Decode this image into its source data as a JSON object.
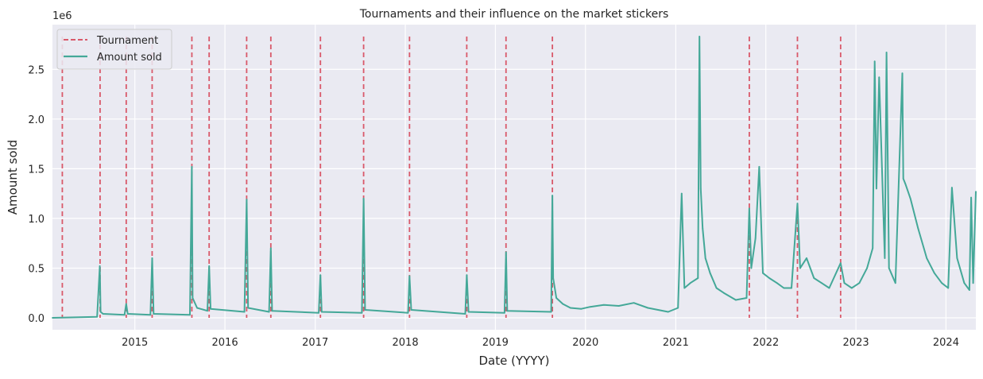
{
  "chart_data": {
    "type": "line",
    "title": "Tournaments and their influence on the market stickers",
    "xlabel": "Date (YYYY)",
    "ylabel": "Amount sold",
    "y_offset_label": "1e6",
    "xlim": [
      "2014-02-01",
      "2024-05-01"
    ],
    "ylim": [
      -0.12,
      2.95
    ],
    "x_ticks": [
      {
        "date": "2015-01-01",
        "label": "2015"
      },
      {
        "date": "2016-01-01",
        "label": "2016"
      },
      {
        "date": "2017-01-01",
        "label": "2017"
      },
      {
        "date": "2018-01-01",
        "label": "2018"
      },
      {
        "date": "2019-01-01",
        "label": "2019"
      },
      {
        "date": "2020-01-01",
        "label": "2020"
      },
      {
        "date": "2021-01-01",
        "label": "2021"
      },
      {
        "date": "2022-01-01",
        "label": "2022"
      },
      {
        "date": "2023-01-01",
        "label": "2023"
      },
      {
        "date": "2024-01-01",
        "label": "2024"
      }
    ],
    "y_ticks": [
      {
        "value": 0.0,
        "label": "0.0"
      },
      {
        "value": 0.5,
        "label": "0.5"
      },
      {
        "value": 1.0,
        "label": "1.0"
      },
      {
        "value": 1.5,
        "label": "1.5"
      },
      {
        "value": 2.0,
        "label": "2.0"
      },
      {
        "value": 2.5,
        "label": "2.5"
      }
    ],
    "grid": true,
    "legend_placement": "top-left",
    "background_color": "#eaeaf2",
    "series": [
      {
        "name": "Tournament",
        "style": "dashed-vertical",
        "color": "#d9596a",
        "dates": [
          "2014-03-13",
          "2014-08-13",
          "2014-11-27",
          "2015-03-12",
          "2015-08-20",
          "2015-10-29",
          "2016-03-29",
          "2016-07-05",
          "2017-01-22",
          "2017-07-16",
          "2018-01-18",
          "2018-09-07",
          "2019-02-13",
          "2019-08-20",
          "2021-10-26",
          "2022-05-09",
          "2022-10-31"
        ],
        "y_top": 2.83
      },
      {
        "name": "Amount sold",
        "style": "solid",
        "color": "#44a898",
        "x": [
          "2014-02-01",
          "2014-08-01",
          "2014-08-12",
          "2014-08-15",
          "2014-08-25",
          "2014-11-20",
          "2014-11-27",
          "2014-12-03",
          "2015-03-05",
          "2015-03-12",
          "2015-03-18",
          "2015-08-12",
          "2015-08-20",
          "2015-08-23",
          "2015-09-10",
          "2015-10-22",
          "2015-10-29",
          "2015-11-04",
          "2016-03-20",
          "2016-03-29",
          "2016-04-04",
          "2016-06-28",
          "2016-07-05",
          "2016-07-10",
          "2017-01-15",
          "2017-01-22",
          "2017-01-27",
          "2017-07-09",
          "2017-07-16",
          "2017-07-22",
          "2018-01-12",
          "2018-01-18",
          "2018-01-25",
          "2018-09-01",
          "2018-09-07",
          "2018-09-14",
          "2019-02-07",
          "2019-02-13",
          "2019-02-18",
          "2019-08-15",
          "2019-08-20",
          "2019-08-23",
          "2019-09-05",
          "2019-10-01",
          "2019-11-01",
          "2019-12-15",
          "2020-01-20",
          "2020-03-15",
          "2020-05-15",
          "2020-07-15",
          "2020-09-10",
          "2020-12-01",
          "2021-01-10",
          "2021-01-25",
          "2021-02-05",
          "2021-03-01",
          "2021-04-01",
          "2021-04-07",
          "2021-04-12",
          "2021-04-20",
          "2021-05-01",
          "2021-05-20",
          "2021-06-15",
          "2021-07-15",
          "2021-09-01",
          "2021-10-15",
          "2021-10-26",
          "2021-11-03",
          "2021-11-20",
          "2021-12-05",
          "2021-12-20",
          "2022-01-15",
          "2022-02-15",
          "2022-03-15",
          "2022-04-15",
          "2022-05-09",
          "2022-05-20",
          "2022-06-15",
          "2022-07-15",
          "2022-08-15",
          "2022-09-15",
          "2022-10-31",
          "2022-11-15",
          "2022-12-15",
          "2023-01-15",
          "2023-02-15",
          "2023-03-10",
          "2023-03-18",
          "2023-03-25",
          "2023-04-05",
          "2023-04-28",
          "2023-05-05",
          "2023-05-15",
          "2023-06-10",
          "2023-07-08",
          "2023-07-12",
          "2023-07-20",
          "2023-08-10",
          "2023-09-10",
          "2023-10-15",
          "2023-11-15",
          "2023-12-15",
          "2024-01-10",
          "2024-01-25",
          "2024-02-15",
          "2024-03-15",
          "2024-04-05",
          "2024-04-12",
          "2024-04-20",
          "2024-05-01"
        ],
        "y": [
          0.0,
          0.01,
          0.52,
          0.06,
          0.04,
          0.03,
          0.14,
          0.04,
          0.03,
          0.6,
          0.04,
          0.03,
          1.52,
          0.2,
          0.1,
          0.07,
          0.52,
          0.09,
          0.06,
          1.19,
          0.1,
          0.06,
          0.7,
          0.07,
          0.05,
          0.43,
          0.06,
          0.05,
          1.2,
          0.08,
          0.05,
          0.42,
          0.08,
          0.04,
          0.43,
          0.06,
          0.05,
          0.66,
          0.07,
          0.06,
          1.23,
          0.4,
          0.2,
          0.14,
          0.1,
          0.09,
          0.11,
          0.13,
          0.12,
          0.15,
          0.1,
          0.06,
          0.1,
          1.25,
          0.3,
          0.35,
          0.4,
          2.83,
          1.3,
          0.9,
          0.6,
          0.45,
          0.3,
          0.25,
          0.18,
          0.2,
          1.1,
          0.5,
          0.8,
          1.52,
          0.45,
          0.4,
          0.35,
          0.3,
          0.3,
          1.15,
          0.5,
          0.6,
          0.4,
          0.35,
          0.3,
          0.55,
          0.35,
          0.3,
          0.35,
          0.5,
          0.7,
          2.58,
          1.3,
          2.42,
          0.6,
          2.67,
          0.5,
          0.35,
          2.46,
          1.4,
          1.35,
          1.2,
          0.9,
          0.6,
          0.45,
          0.35,
          0.3,
          1.31,
          0.6,
          0.35,
          0.28,
          1.21,
          0.35,
          1.27
        ]
      }
    ]
  }
}
